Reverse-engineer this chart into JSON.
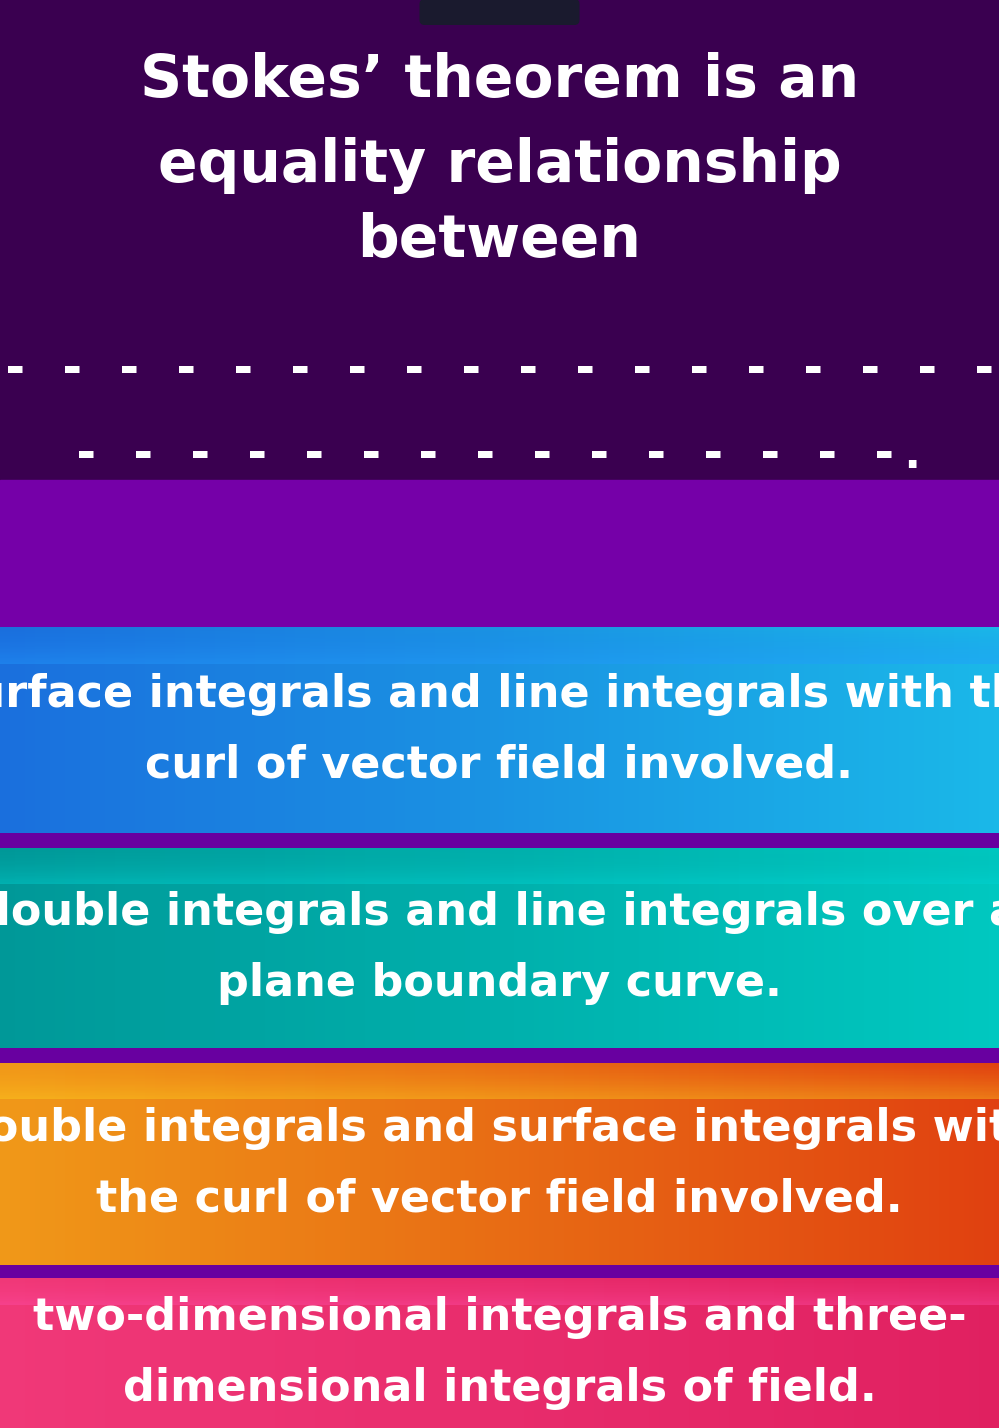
{
  "title_lines": [
    "Stokes’ theorem is an",
    "equality relationship",
    "between"
  ],
  "blank_line1": "- - - - - - - - - - - - - - - - - - - - - - - -",
  "blank_line2": "- - - - - - - - - - - - - - -.",
  "bg_top_color": "#3a0050",
  "bg_mid_color": "#7a00a0",
  "answer_boxes": [
    {
      "lines": [
        "surface integrals and line integrals with the",
        "curl of vector field involved."
      ],
      "color_left": "#1a6fdd",
      "color_right": "#1ab8e8",
      "color_top_shine": "#3090ff"
    },
    {
      "lines": [
        "double integrals and line integrals over a",
        "plane boundary curve."
      ],
      "color_left": "#009898",
      "color_right": "#00c8c0",
      "color_top_shine": "#00d8d0"
    },
    {
      "lines": [
        "double integrals and surface integrals with",
        "the curl of vector field involved."
      ],
      "color_left": "#f09818",
      "color_right": "#e04010",
      "color_top_shine": "#ffc030"
    },
    {
      "lines": [
        "two-dimensional integrals and three-",
        "dimensional integrals of field."
      ],
      "color_left": "#f03878",
      "color_right": "#e02060",
      "color_top_shine": "#ff60a0"
    }
  ],
  "text_color": "#ffffff",
  "title_fontsize": 42,
  "answer_fontsize": 32,
  "blank_fontsize": 34
}
